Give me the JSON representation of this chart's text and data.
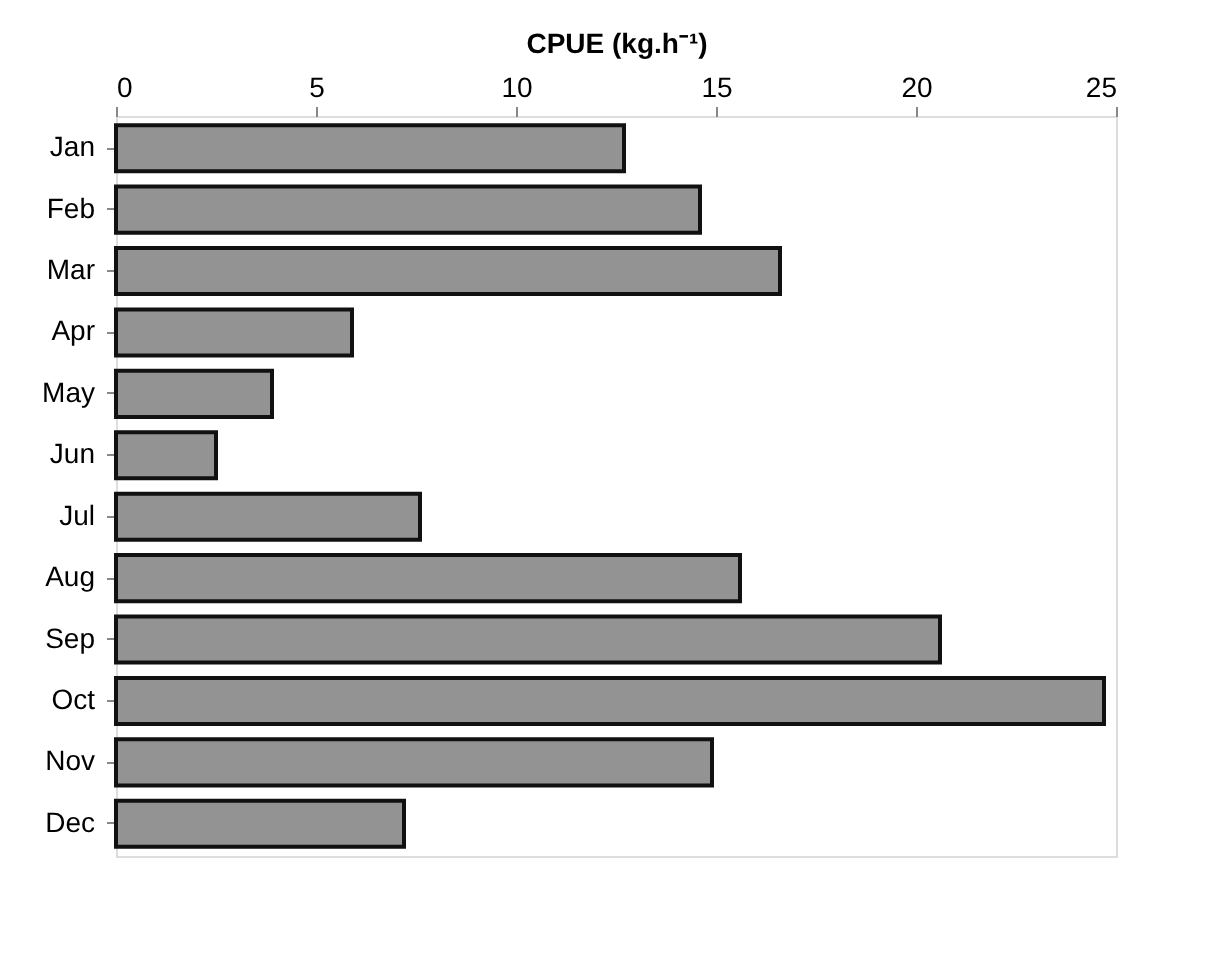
{
  "chart_data": {
    "type": "bar",
    "orientation": "horizontal",
    "xlabel": "CPUE (kg.h⁻¹)",
    "categories": [
      "Jan",
      "Feb",
      "Mar",
      "Apr",
      "May",
      "Jun",
      "Jul",
      "Aug",
      "Sep",
      "Oct",
      "Nov",
      "Dec"
    ],
    "values": [
      12.7,
      14.6,
      16.6,
      5.9,
      3.9,
      2.5,
      7.6,
      15.6,
      20.6,
      24.7,
      14.9,
      7.2
    ],
    "color": "#939393",
    "xlim": [
      0,
      25
    ],
    "xticks": [
      0,
      5,
      10,
      15,
      20,
      25
    ],
    "grid": false
  }
}
